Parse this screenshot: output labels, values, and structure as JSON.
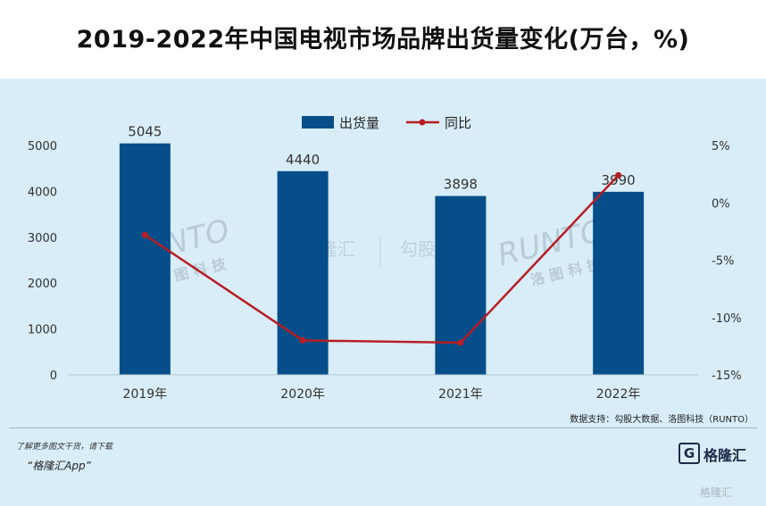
{
  "chart_data": {
    "type": "bar",
    "title": "2019-2022年中国电视市场品牌出货量变化(万台，%)",
    "categories": [
      "2019年",
      "2020年",
      "2021年",
      "2022年"
    ],
    "series": [
      {
        "name": "出货量",
        "type": "bar",
        "axis": "left",
        "values": [
          5045,
          4440,
          3898,
          3990
        ],
        "color": "#064e8a"
      },
      {
        "name": "同比",
        "type": "line",
        "axis": "right",
        "values": [
          -2.8,
          -12.0,
          -12.2,
          2.4
        ],
        "color": "#b81d23"
      }
    ],
    "data_labels": [
      "5045",
      "4440",
      "3898",
      "3990"
    ],
    "y_left": {
      "ticks": [
        0,
        1000,
        2000,
        3000,
        4000,
        5000
      ],
      "tick_labels": [
        "0",
        "1000",
        "2000",
        "3000",
        "4000",
        "5000"
      ],
      "range": [
        0,
        5000
      ]
    },
    "y_right": {
      "ticks": [
        5,
        0,
        -5,
        -10,
        -15
      ],
      "tick_labels": [
        "5%",
        "0%",
        "-5%",
        "-10%",
        "-15%"
      ],
      "range": [
        -15,
        5
      ]
    },
    "legend_position": "top-center",
    "grid": false
  },
  "source_note": "数据支持：勾股大数据、洛图科技（RUNTO）",
  "watermarks": {
    "runto": "RUNTO",
    "runto_cn": "洛 图 科 技",
    "gelonghui": "格隆汇",
    "gougu": "勾股大"
  },
  "promo": {
    "line1": "了解更多图文干货，请下载",
    "line2": "“格隆汇App”"
  },
  "logo": {
    "mark": "G",
    "text": "格隆汇",
    "corner": "格隆汇"
  }
}
